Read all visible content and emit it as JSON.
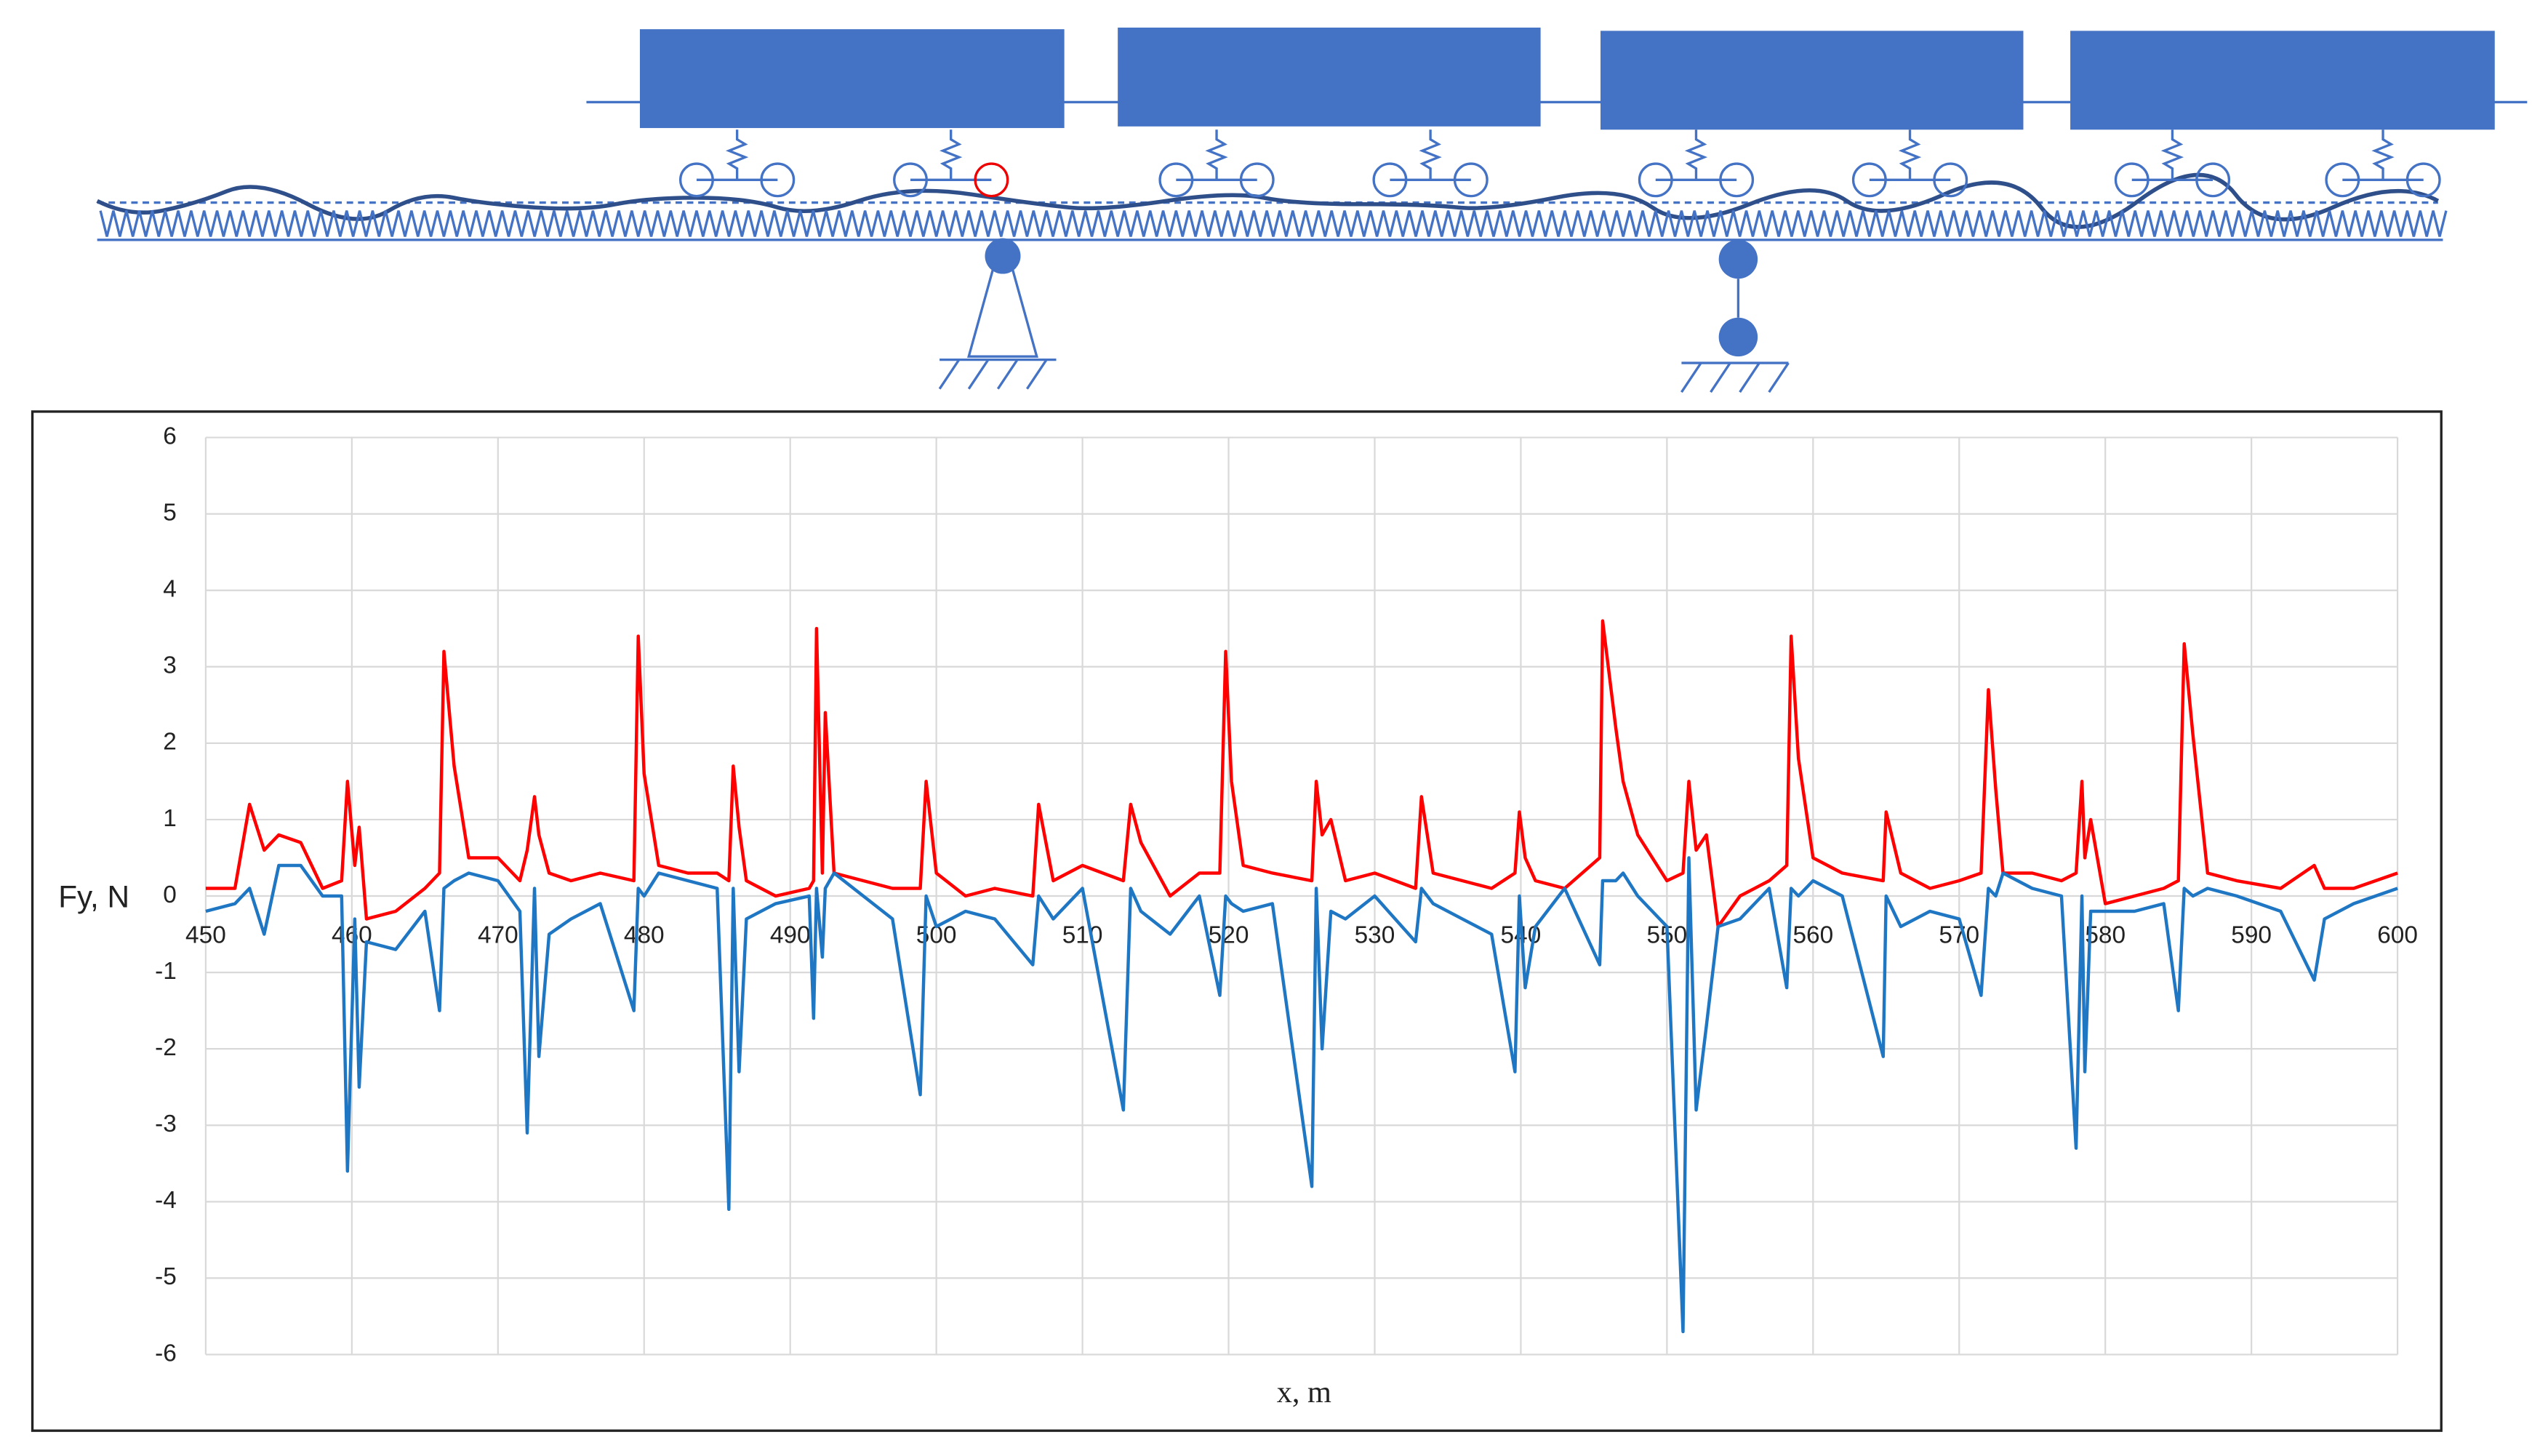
{
  "chart_data": {
    "type": "line",
    "x_label": "x, m",
    "y_label": "Fy, N",
    "x": [
      450,
      452,
      453,
      454,
      455,
      456.5,
      458,
      459.3,
      459.7,
      460.2,
      460.5,
      461,
      463,
      465,
      466,
      466.3,
      467,
      468,
      470,
      471.5,
      472,
      472.5,
      472.8,
      473.5,
      475,
      477,
      479.3,
      479.6,
      480,
      481,
      483,
      485,
      485.8,
      486.1,
      486.5,
      487,
      489,
      491.3,
      491.6,
      491.8,
      492.2,
      492.4,
      493,
      495,
      497,
      498.9,
      499.3,
      500,
      502,
      504,
      506.6,
      507,
      508,
      510,
      512.8,
      513.3,
      514,
      516,
      518,
      519.4,
      519.8,
      520.2,
      521,
      523,
      525.7,
      526,
      526.4,
      527,
      528,
      530,
      532.8,
      533.2,
      534,
      536,
      538,
      539.6,
      539.9,
      540.3,
      541,
      543,
      545.4,
      545.6,
      546.5,
      547,
      548,
      550,
      551.1,
      551.5,
      552,
      552.7,
      553.5,
      555,
      557,
      558.2,
      558.5,
      559,
      560,
      562,
      564.8,
      565,
      566,
      568,
      570,
      571.5,
      572,
      572.5,
      573,
      575,
      577,
      578,
      578.4,
      578.6,
      579,
      580,
      582,
      584,
      585,
      585.4,
      586,
      587,
      589,
      592,
      594.3,
      595,
      597,
      600
    ],
    "series": [
      {
        "color": "#ff0000",
        "values": [
          0.1,
          0.1,
          1.2,
          0.6,
          0.8,
          0.7,
          0.1,
          0.2,
          1.5,
          0.4,
          0.9,
          -0.3,
          -0.2,
          0.1,
          0.3,
          3.2,
          1.7,
          0.5,
          0.5,
          0.2,
          0.6,
          1.3,
          0.8,
          0.3,
          0.2,
          0.3,
          0.2,
          3.4,
          1.6,
          0.4,
          0.3,
          0.3,
          0.2,
          1.7,
          0.9,
          0.2,
          0.0,
          0.1,
          0.2,
          3.5,
          0.3,
          2.4,
          0.3,
          0.2,
          0.1,
          0.1,
          1.5,
          0.3,
          0.0,
          0.1,
          0.0,
          1.2,
          0.2,
          0.4,
          0.2,
          1.2,
          0.7,
          0.0,
          0.3,
          0.3,
          3.2,
          1.5,
          0.4,
          0.3,
          0.2,
          1.5,
          0.8,
          1.0,
          0.2,
          0.3,
          0.1,
          1.3,
          0.3,
          0.2,
          0.1,
          0.3,
          1.1,
          0.5,
          0.2,
          0.1,
          0.5,
          3.6,
          2.2,
          1.5,
          0.8,
          0.2,
          0.3,
          1.5,
          0.6,
          0.8,
          -0.4,
          0.0,
          0.2,
          0.4,
          3.4,
          1.8,
          0.5,
          0.3,
          0.2,
          1.1,
          0.3,
          0.1,
          0.2,
          0.3,
          2.7,
          1.4,
          0.3,
          0.3,
          0.2,
          0.3,
          1.5,
          0.5,
          1.0,
          -0.1,
          0.0,
          0.1,
          0.2,
          3.3,
          2.1,
          0.3,
          0.2,
          0.1,
          0.4,
          0.1,
          0.1,
          0.3
        ]
      },
      {
        "color": "#1f77c4",
        "values": [
          -0.2,
          -0.1,
          0.1,
          -0.5,
          0.4,
          0.4,
          0.0,
          0.0,
          -3.6,
          -0.3,
          -2.5,
          -0.6,
          -0.7,
          -0.2,
          -1.5,
          0.1,
          0.2,
          0.3,
          0.2,
          -0.2,
          -3.1,
          0.1,
          -2.1,
          -0.5,
          -0.3,
          -0.1,
          -1.5,
          0.1,
          0.0,
          0.3,
          0.2,
          0.1,
          -4.1,
          0.1,
          -2.3,
          -0.3,
          -0.1,
          0.0,
          -1.6,
          0.1,
          -0.8,
          0.1,
          0.3,
          0.0,
          -0.3,
          -2.6,
          0.0,
          -0.4,
          -0.2,
          -0.3,
          -0.9,
          0.0,
          -0.3,
          0.1,
          -2.8,
          0.1,
          -0.2,
          -0.5,
          0.0,
          -1.3,
          0.0,
          -0.1,
          -0.2,
          -0.1,
          -3.8,
          0.1,
          -2.0,
          -0.2,
          -0.3,
          0.0,
          -0.6,
          0.1,
          -0.1,
          -0.3,
          -0.5,
          -2.3,
          0.0,
          -1.2,
          -0.4,
          0.1,
          -0.9,
          0.2,
          0.2,
          0.3,
          0.0,
          -0.4,
          -5.7,
          0.5,
          -2.8,
          -1.7,
          -0.4,
          -0.3,
          0.1,
          -1.2,
          0.1,
          0.0,
          0.2,
          0.0,
          -2.1,
          0.0,
          -0.4,
          -0.2,
          -0.3,
          -1.3,
          0.1,
          0.0,
          0.3,
          0.1,
          0.0,
          -3.3,
          0.0,
          -2.3,
          -0.2,
          -0.2,
          -0.2,
          -0.1,
          -1.5,
          0.1,
          0.0,
          0.1,
          0.0,
          -0.2,
          -1.1,
          -0.3,
          -0.1,
          0.1
        ]
      }
    ],
    "xlim": [
      450,
      600
    ],
    "xticks": [
      450,
      460,
      470,
      480,
      490,
      500,
      510,
      520,
      530,
      540,
      550,
      560,
      570,
      580,
      590,
      600
    ],
    "ylim": [
      -6,
      6
    ],
    "yticks": [
      -6,
      -5,
      -4,
      -3,
      -2,
      -1,
      0,
      1,
      2,
      3,
      4,
      5,
      6
    ],
    "grid": true
  }
}
